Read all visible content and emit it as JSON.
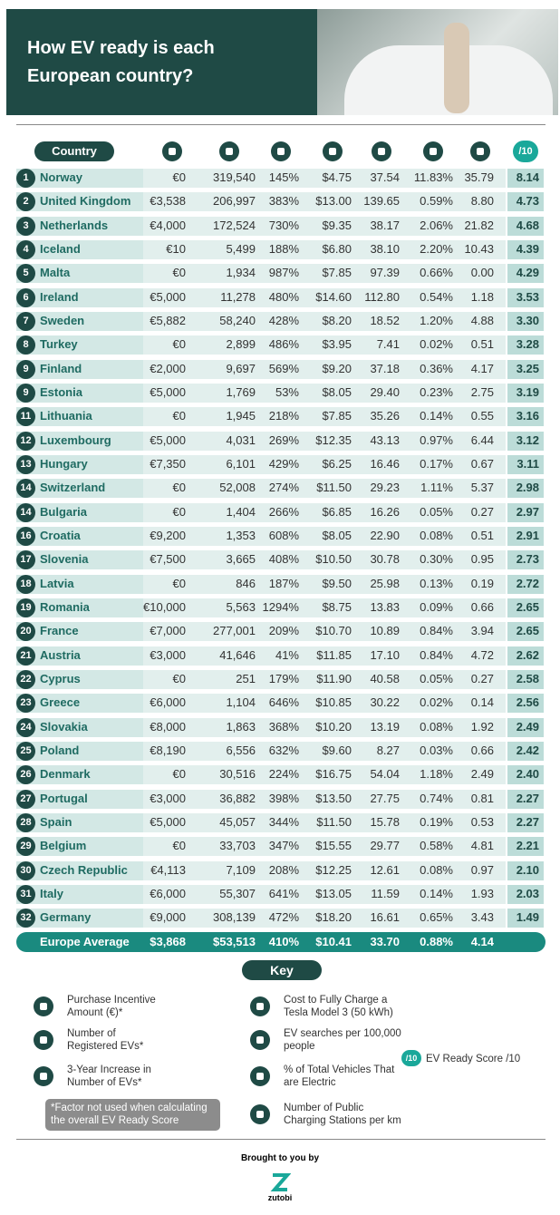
{
  "header": {
    "title": "How EV ready is each European country?"
  },
  "table": {
    "header": {
      "country": "Country",
      "score": "/10"
    },
    "rows": [
      [
        "1",
        "Norway",
        "€0",
        "319,540",
        "145%",
        "$4.75",
        "37.54",
        "11.83%",
        "35.79",
        "8.14"
      ],
      [
        "2",
        "United Kingdom",
        "€3,538",
        "206,997",
        "383%",
        "$13.00",
        "139.65",
        "0.59%",
        "8.80",
        "4.73"
      ],
      [
        "3",
        "Netherlands",
        "€4,000",
        "172,524",
        "730%",
        "$9.35",
        "38.17",
        "2.06%",
        "21.82",
        "4.68"
      ],
      [
        "4",
        "Iceland",
        "€10",
        "5,499",
        "188%",
        "$6.80",
        "38.10",
        "2.20%",
        "10.43",
        "4.39"
      ],
      [
        "5",
        "Malta",
        "€0",
        "1,934",
        "987%",
        "$7.85",
        "97.39",
        "0.66%",
        "0.00",
        "4.29"
      ],
      [
        "6",
        "Ireland",
        "€5,000",
        "11,278",
        "480%",
        "$14.60",
        "112.80",
        "0.54%",
        "1.18",
        "3.53"
      ],
      [
        "7",
        "Sweden",
        "€5,882",
        "58,240",
        "428%",
        "$8.20",
        "18.52",
        "1.20%",
        "4.88",
        "3.30"
      ],
      [
        "8",
        "Turkey",
        "€0",
        "2,899",
        "486%",
        "$3.95",
        "7.41",
        "0.02%",
        "0.51",
        "3.28"
      ],
      [
        "9",
        "Finland",
        "€2,000",
        "9,697",
        "569%",
        "$9.20",
        "37.18",
        "0.36%",
        "4.17",
        "3.25"
      ],
      [
        "9",
        "Estonia",
        "€5,000",
        "1,769",
        "53%",
        "$8.05",
        "29.40",
        "0.23%",
        "2.75",
        "3.19"
      ],
      [
        "11",
        "Lithuania",
        "€0",
        "1,945",
        "218%",
        "$7.85",
        "35.26",
        "0.14%",
        "0.55",
        "3.16"
      ],
      [
        "12",
        "Luxembourg",
        "€5,000",
        "4,031",
        "269%",
        "$12.35",
        "43.13",
        "0.97%",
        "6.44",
        "3.12"
      ],
      [
        "13",
        "Hungary",
        "€7,350",
        "6,101",
        "429%",
        "$6.25",
        "16.46",
        "0.17%",
        "0.67",
        "3.11"
      ],
      [
        "14",
        "Switzerland",
        "€0",
        "52,008",
        "274%",
        "$11.50",
        "29.23",
        "1.11%",
        "5.37",
        "2.98"
      ],
      [
        "14",
        "Bulgaria",
        "€0",
        "1,404",
        "266%",
        "$6.85",
        "16.26",
        "0.05%",
        "0.27",
        "2.97"
      ],
      [
        "16",
        "Croatia",
        "€9,200",
        "1,353",
        "608%",
        "$8.05",
        "22.90",
        "0.08%",
        "0.51",
        "2.91"
      ],
      [
        "17",
        "Slovenia",
        "€7,500",
        "3,665",
        "408%",
        "$10.50",
        "30.78",
        "0.30%",
        "0.95",
        "2.73"
      ],
      [
        "18",
        "Latvia",
        "€0",
        "846",
        "187%",
        "$9.50",
        "25.98",
        "0.13%",
        "0.19",
        "2.72"
      ],
      [
        "19",
        "Romania",
        "€10,000",
        "5,563",
        "1294%",
        "$8.75",
        "13.83",
        "0.09%",
        "0.66",
        "2.65"
      ],
      [
        "20",
        "France",
        "€7,000",
        "277,001",
        "209%",
        "$10.70",
        "10.89",
        "0.84%",
        "3.94",
        "2.65"
      ],
      [
        "21",
        "Austria",
        "€3,000",
        "41,646",
        "41%",
        "$11.85",
        "17.10",
        "0.84%",
        "4.72",
        "2.62"
      ],
      [
        "22",
        "Cyprus",
        "€0",
        "251",
        "179%",
        "$11.90",
        "40.58",
        "0.05%",
        "0.27",
        "2.58"
      ],
      [
        "23",
        "Greece",
        "€6,000",
        "1,104",
        "646%",
        "$10.85",
        "30.22",
        "0.02%",
        "0.14",
        "2.56"
      ],
      [
        "24",
        "Slovakia",
        "€8,000",
        "1,863",
        "368%",
        "$10.20",
        "13.19",
        "0.08%",
        "1.92",
        "2.49"
      ],
      [
        "25",
        "Poland",
        "€8,190",
        "6,556",
        "632%",
        "$9.60",
        "8.27",
        "0.03%",
        "0.66",
        "2.42"
      ],
      [
        "26",
        "Denmark",
        "€0",
        "30,516",
        "224%",
        "$16.75",
        "54.04",
        "1.18%",
        "2.49",
        "2.40"
      ],
      [
        "27",
        "Portugal",
        "€3,000",
        "36,882",
        "398%",
        "$13.50",
        "27.75",
        "0.74%",
        "0.81",
        "2.27"
      ],
      [
        "28",
        "Spain",
        "€5,000",
        "45,057",
        "344%",
        "$11.50",
        "15.78",
        "0.19%",
        "0.53",
        "2.27"
      ],
      [
        "29",
        "Belgium",
        "€0",
        "33,703",
        "347%",
        "$15.55",
        "29.77",
        "0.58%",
        "4.81",
        "2.21"
      ],
      [
        "30",
        "Czech Republic",
        "€4,113",
        "7,109",
        "208%",
        "$12.25",
        "12.61",
        "0.08%",
        "0.97",
        "2.10"
      ],
      [
        "31",
        "Italy",
        "€6,000",
        "55,307",
        "641%",
        "$13.05",
        "11.59",
        "0.14%",
        "1.93",
        "2.03"
      ],
      [
        "32",
        "Germany",
        "€9,000",
        "308,139",
        "472%",
        "$18.20",
        "16.61",
        "0.65%",
        "3.43",
        "1.49"
      ]
    ],
    "average": [
      "Europe Average",
      "$3,868",
      "$53,513",
      "410%",
      "$10.41",
      "33.70",
      "0.88%",
      "4.14"
    ]
  },
  "key": {
    "title": "Key",
    "items": [
      "Purchase Incentive Amount (€)*",
      "Number of Registered EVs*",
      "3-Year Increase in Number of EVs*",
      "Cost to Fully Charge a Tesla Model 3 (50 kWh)",
      "EV searches per 100,000 people",
      "% of Total Vehicles That are Electric",
      "Number of Public Charging Stations per km",
      "EV Ready Score /10"
    ],
    "badge": "/10",
    "note": "*Factor not used when calculating the overall EV Ready Score"
  },
  "footer": {
    "brought": "Brought to you by",
    "brand": "zutobi"
  }
}
